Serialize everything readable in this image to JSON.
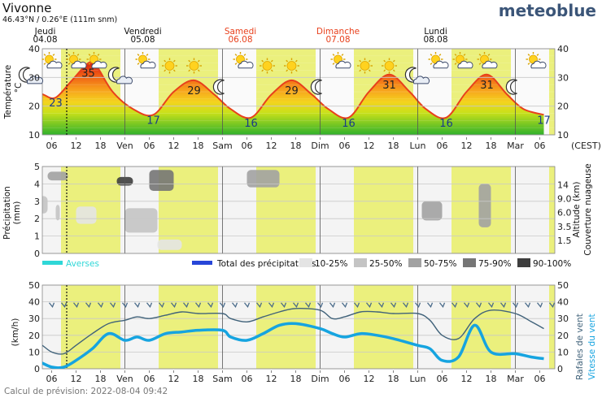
{
  "header": {
    "location": "Vivonne",
    "coords": "46.43°N / 0.26°E (111m snm)",
    "brand": "meteoblue"
  },
  "days": [
    {
      "name": "Jeudi",
      "date": "04.08",
      "weekend": false
    },
    {
      "name": "Vendredi",
      "date": "05.08",
      "weekend": false
    },
    {
      "name": "Samedi",
      "date": "06.08",
      "weekend": true
    },
    {
      "name": "Dimanche",
      "date": "07.08",
      "weekend": true
    },
    {
      "name": "Lundi",
      "date": "08.08",
      "weekend": false
    }
  ],
  "timezone_label": "(CEST)",
  "footer": "Calcul de prévision: 2022-08-04 09:42",
  "colors": {
    "day_band": "#ebf07d",
    "weekend": "#e8401c",
    "temp_line": "#e8401c",
    "wind_speed": "#16a4e0",
    "gusts": "#40627a",
    "showers": "#2fd7d7",
    "total_precip": "#2746d8",
    "brand": "#3b5578"
  },
  "chart_data": [
    {
      "type": "area",
      "id": "temperature",
      "ylabel": "Température °C",
      "ylim": [
        10,
        40
      ],
      "yticks": [
        10,
        20,
        30,
        40
      ],
      "xticks": [
        "06",
        "12",
        "18",
        "Ven",
        "06",
        "12",
        "18",
        "Sam",
        "06",
        "12",
        "18",
        "Dim",
        "06",
        "12",
        "18",
        "Lun",
        "06",
        "12",
        "18",
        "Mar",
        "06"
      ],
      "series": [
        {
          "x": [
            "2022-08-04 00:00",
            "2022-08-04 04:00",
            "2022-08-04 07:00",
            "2022-08-04 11:00",
            "2022-08-04 15:00",
            "2022-08-04 17:00",
            "2022-08-04 21:00",
            "2022-08-05 02:00",
            "2022-08-05 07:00",
            "2022-08-05 12:00",
            "2022-08-05 17:00",
            "2022-08-05 22:00",
            "2022-08-06 02:00",
            "2022-08-06 07:00",
            "2022-08-06 12:00",
            "2022-08-06 17:00",
            "2022-08-06 22:00",
            "2022-08-07 02:00",
            "2022-08-07 07:00",
            "2022-08-07 12:00",
            "2022-08-07 17:00",
            "2022-08-07 22:00",
            "2022-08-08 02:00",
            "2022-08-08 07:00",
            "2022-08-08 12:00",
            "2022-08-08 17:00",
            "2022-08-08 22:00",
            "2022-08-09 02:00",
            "2022-08-09 07:00"
          ],
          "values": [
            27,
            24,
            23,
            29,
            35,
            34,
            25,
            19,
            17,
            25,
            29,
            24,
            19,
            16,
            24,
            29,
            24,
            19,
            16,
            25,
            31,
            25,
            19,
            16,
            25,
            31,
            24,
            19,
            17
          ]
        }
      ],
      "annotations": [
        {
          "x": "2022-08-04 07:00",
          "value": 23,
          "label": "23"
        },
        {
          "x": "2022-08-04 15:00",
          "value": 35,
          "label": "35"
        },
        {
          "x": "2022-08-05 07:00",
          "value": 17,
          "label": "17"
        },
        {
          "x": "2022-08-05 17:00",
          "value": 29,
          "label": "29"
        },
        {
          "x": "2022-08-06 07:00",
          "value": 16,
          "label": "16"
        },
        {
          "x": "2022-08-06 17:00",
          "value": 29,
          "label": "29"
        },
        {
          "x": "2022-08-07 07:00",
          "value": 16,
          "label": "16"
        },
        {
          "x": "2022-08-07 17:00",
          "value": 31,
          "label": "31"
        },
        {
          "x": "2022-08-08 07:00",
          "value": 16,
          "label": "16"
        },
        {
          "x": "2022-08-08 17:00",
          "value": 31,
          "label": "31"
        },
        {
          "x": "2022-08-09 07:00",
          "value": 17,
          "label": "17"
        }
      ],
      "icons": [
        {
          "x": "2022-08-04 01:00",
          "icon": "night-cloudy-icon"
        },
        {
          "x": "2022-08-04 06:00",
          "icon": "partly-cloudy-icon"
        },
        {
          "x": "2022-08-04 12:00",
          "icon": "partly-cloudy-icon"
        },
        {
          "x": "2022-08-04 17:00",
          "icon": "partly-cloudy-icon"
        },
        {
          "x": "2022-08-04 23:00",
          "icon": "night-cloudy-icon"
        },
        {
          "x": "2022-08-05 05:00",
          "icon": "partly-cloudy-icon"
        },
        {
          "x": "2022-08-05 11:00",
          "icon": "sun-icon"
        },
        {
          "x": "2022-08-05 17:00",
          "icon": "sun-icon"
        },
        {
          "x": "2022-08-06 00:00",
          "icon": "moon-icon"
        },
        {
          "x": "2022-08-06 05:00",
          "icon": "partly-cloudy-icon"
        },
        {
          "x": "2022-08-06 11:00",
          "icon": "sun-icon"
        },
        {
          "x": "2022-08-06 17:00",
          "icon": "sun-icon"
        },
        {
          "x": "2022-08-07 00:00",
          "icon": "moon-icon"
        },
        {
          "x": "2022-08-07 05:00",
          "icon": "partly-cloudy-icon"
        },
        {
          "x": "2022-08-07 11:00",
          "icon": "sun-icon"
        },
        {
          "x": "2022-08-07 17:00",
          "icon": "sun-icon"
        },
        {
          "x": "2022-08-08 00:00",
          "icon": "night-cloudy-icon"
        },
        {
          "x": "2022-08-08 05:00",
          "icon": "partly-cloudy-icon"
        },
        {
          "x": "2022-08-08 11:00",
          "icon": "partly-cloudy-icon"
        },
        {
          "x": "2022-08-08 17:00",
          "icon": "partly-cloudy-icon"
        },
        {
          "x": "2022-08-09 00:00",
          "icon": "moon-icon"
        },
        {
          "x": "2022-08-09 05:00",
          "icon": "partly-cloudy-icon"
        }
      ]
    },
    {
      "type": "heatmap",
      "id": "precipitation_clouds",
      "ylabel": "Précipitation (mm)",
      "ylabel_right": "Altitude (km) Couverture nuageuse",
      "ylim": [
        0,
        5
      ],
      "yticks": [
        0,
        1,
        2,
        3,
        4,
        5
      ],
      "yticks_right": [
        "1.5",
        "3.5",
        "6.0",
        "9.0",
        "14"
      ],
      "legend": [
        {
          "label": "Averses",
          "kind": "showers"
        },
        {
          "label": "Total des précipitations",
          "kind": "total"
        },
        {
          "label": "10-25%",
          "color": "#e4e4e4"
        },
        {
          "label": "25-50%",
          "color": "#c4c4c4"
        },
        {
          "label": "50-75%",
          "color": "#a2a2a2"
        },
        {
          "label": "75-90%",
          "color": "#767676"
        },
        {
          "label": "90-100%",
          "color": "#3e3e3e"
        }
      ],
      "clouds": [
        {
          "x_start": "2022-08-04 00:00",
          "x_end": "2022-08-04 05:00",
          "y_start": 2.3,
          "y_end": 3.3,
          "cover": "25-50%"
        },
        {
          "x_start": "2022-08-04 05:00",
          "x_end": "2022-08-04 10:00",
          "y_start": 4.2,
          "y_end": 4.7,
          "cover": "50-75%"
        },
        {
          "x_start": "2022-08-04 07:00",
          "x_end": "2022-08-04 08:00",
          "y_start": 1.9,
          "y_end": 2.8,
          "cover": "25-50%"
        },
        {
          "x_start": "2022-08-04 12:00",
          "x_end": "2022-08-04 17:00",
          "y_start": 1.7,
          "y_end": 2.7,
          "cover": "10-25%"
        },
        {
          "x_start": "2022-08-04 22:00",
          "x_end": "2022-08-05 02:00",
          "y_start": 3.9,
          "y_end": 4.4,
          "cover": "90-100%"
        },
        {
          "x_start": "2022-08-05 00:00",
          "x_end": "2022-08-05 08:00",
          "y_start": 1.2,
          "y_end": 2.6,
          "cover": "25-50%"
        },
        {
          "x_start": "2022-08-05 06:00",
          "x_end": "2022-08-05 12:00",
          "y_start": 3.6,
          "y_end": 4.8,
          "cover": "75-90%"
        },
        {
          "x_start": "2022-08-05 08:00",
          "x_end": "2022-08-05 14:00",
          "y_start": 0.2,
          "y_end": 0.8,
          "cover": "10-25%"
        },
        {
          "x_start": "2022-08-06 06:00",
          "x_end": "2022-08-06 14:00",
          "y_start": 3.8,
          "y_end": 4.8,
          "cover": "50-75%"
        },
        {
          "x_start": "2022-08-08 01:00",
          "x_end": "2022-08-08 06:00",
          "y_start": 1.9,
          "y_end": 3.0,
          "cover": "50-75%"
        },
        {
          "x_start": "2022-08-08 15:00",
          "x_end": "2022-08-08 18:00",
          "y_start": 1.5,
          "y_end": 4.0,
          "cover": "50-75%"
        }
      ]
    },
    {
      "type": "line",
      "id": "wind",
      "ylabel": "(km/h)",
      "ylabel_right": [
        "Rafales de vent",
        "Vitesse du vent"
      ],
      "ylim": [
        0,
        50
      ],
      "yticks": [
        0,
        10,
        20,
        30,
        40,
        50
      ],
      "series": [
        {
          "name": "Rafales de vent",
          "x": [
            "2022-08-04 00:00",
            "2022-08-04 03:00",
            "2022-08-04 06:00",
            "2022-08-04 09:00",
            "2022-08-04 12:00",
            "2022-08-04 16:00",
            "2022-08-04 20:00",
            "2022-08-05 00:00",
            "2022-08-05 03:00",
            "2022-08-05 06:00",
            "2022-08-05 10:00",
            "2022-08-05 14:00",
            "2022-08-05 18:00",
            "2022-08-06 00:00",
            "2022-08-06 02:00",
            "2022-08-06 06:00",
            "2022-08-06 10:00",
            "2022-08-06 14:00",
            "2022-08-06 18:00",
            "2022-08-07 00:00",
            "2022-08-07 03:00",
            "2022-08-07 06:00",
            "2022-08-07 10:00",
            "2022-08-07 14:00",
            "2022-08-07 18:00",
            "2022-08-08 00:00",
            "2022-08-08 03:00",
            "2022-08-08 06:00",
            "2022-08-08 10:00",
            "2022-08-08 14:00",
            "2022-08-08 18:00",
            "2022-08-09 00:00",
            "2022-08-09 04:00",
            "2022-08-09 07:00"
          ],
          "values": [
            16,
            15,
            10,
            9,
            14,
            21,
            27,
            29,
            31,
            30,
            32,
            34,
            33,
            33,
            30,
            28,
            31,
            34,
            36,
            35,
            30,
            31,
            34,
            34,
            33,
            33,
            29,
            20,
            18,
            30,
            35,
            33,
            28,
            24
          ]
        },
        {
          "name": "Vitesse du vent",
          "x": [
            "2022-08-04 00:00",
            "2022-08-04 03:00",
            "2022-08-04 06:00",
            "2022-08-04 09:00",
            "2022-08-04 12:00",
            "2022-08-04 16:00",
            "2022-08-04 20:00",
            "2022-08-05 00:00",
            "2022-08-05 03:00",
            "2022-08-05 06:00",
            "2022-08-05 10:00",
            "2022-08-05 14:00",
            "2022-08-05 18:00",
            "2022-08-06 00:00",
            "2022-08-06 02:00",
            "2022-08-06 06:00",
            "2022-08-06 10:00",
            "2022-08-06 14:00",
            "2022-08-06 18:00",
            "2022-08-07 00:00",
            "2022-08-07 03:00",
            "2022-08-07 06:00",
            "2022-08-07 10:00",
            "2022-08-07 14:00",
            "2022-08-07 18:00",
            "2022-08-08 00:00",
            "2022-08-08 03:00",
            "2022-08-08 06:00",
            "2022-08-08 10:00",
            "2022-08-08 14:00",
            "2022-08-08 18:00",
            "2022-08-09 00:00",
            "2022-08-09 04:00",
            "2022-08-09 07:00"
          ],
          "values": [
            5,
            4,
            1,
            1,
            5,
            12,
            21,
            17,
            19,
            17,
            21,
            22,
            23,
            23,
            19,
            17,
            21,
            26,
            27,
            24,
            21,
            19,
            21,
            20,
            18,
            14,
            12,
            5,
            7,
            26,
            10,
            9,
            7,
            6
          ]
        }
      ],
      "wind_direction": "northeast"
    }
  ]
}
